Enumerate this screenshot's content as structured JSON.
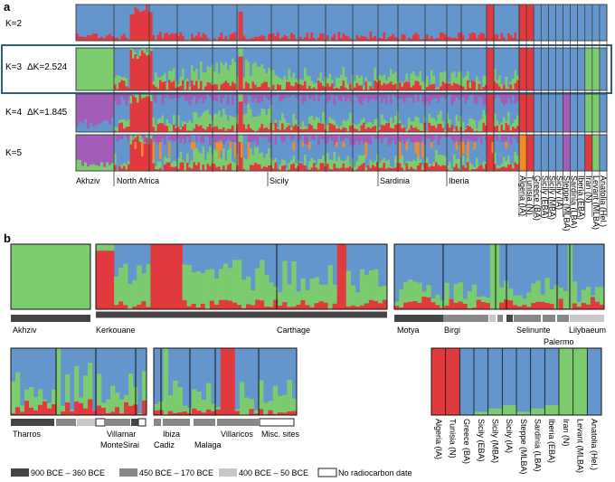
{
  "colors": {
    "blue": "#6495cd",
    "green": "#7ccb6f",
    "red": "#e03a3e",
    "purple": "#a35db8",
    "orange": "#f08c2c",
    "highlight_box": "#2b5d86",
    "period_dark": "#444444",
    "period_mid": "#888888",
    "period_light": "#c8c8c8"
  },
  "panel_a": {
    "label": "a",
    "rows": [
      {
        "k_text": "K=2",
        "delta": ""
      },
      {
        "k_text": "K=3",
        "delta": "ΔK=2.524"
      },
      {
        "k_text": "K=4",
        "delta": "ΔK=1.845"
      },
      {
        "k_text": "K=5",
        "delta": ""
      }
    ],
    "group_labels": [
      "Akhziv",
      "North Africa",
      "Sicily",
      "Sardinia",
      "Iberia"
    ],
    "reference_labels": [
      "Algeria (IA)",
      "Tunisia (N)",
      "Greece (BA)",
      "Sicily (EBA)",
      "Sicily (MBA)",
      "Sicily (IA)",
      "Steppe (MLBA)",
      "Sardinia (LBA)",
      "Iberia (EBA)",
      "Iran (N)",
      "Levant (MLBA)",
      "Anatolia (Hel.)"
    ]
  },
  "panel_b": {
    "label": "b",
    "site_labels": {
      "akhziv": "Akhziv",
      "kerkouane": "Kerkouane",
      "carthage": "Carthage",
      "motya": "Motya",
      "birgi": "Birgi",
      "selinunte": "Selinunte",
      "lilybaeum": "Lilybaeum",
      "palermo": "Palermo",
      "tharros": "Tharros",
      "villamar": "Villamar",
      "montesirai": "MonteSirai",
      "cadiz": "Cadiz",
      "ibiza": "Ibiza",
      "malaga": "Malaga",
      "villaricos": "Villaricos",
      "misc": "Misc. sites"
    },
    "reference_labels": [
      "Algeria (IA)",
      "Tunisia (N)",
      "Greece (BA)",
      "Sicily (EBA)",
      "Sicily (MBA)",
      "Sicily (IA)",
      "Steppe (MLBA)",
      "Sardinia (LBA)",
      "Iberia (EBA)",
      "Iran (N)",
      "Levant (MLBA)",
      "Anatolia (Hel.)"
    ]
  },
  "legend": [
    {
      "label": "900 BCE – 360 BCE",
      "swatch": "dark"
    },
    {
      "label": "450 BCE – 170 BCE",
      "swatch": "mid"
    },
    {
      "label": "400 BCE – 50 BCE",
      "swatch": "light"
    },
    {
      "label": "No radiocarbon date",
      "swatch": "none"
    }
  ]
}
